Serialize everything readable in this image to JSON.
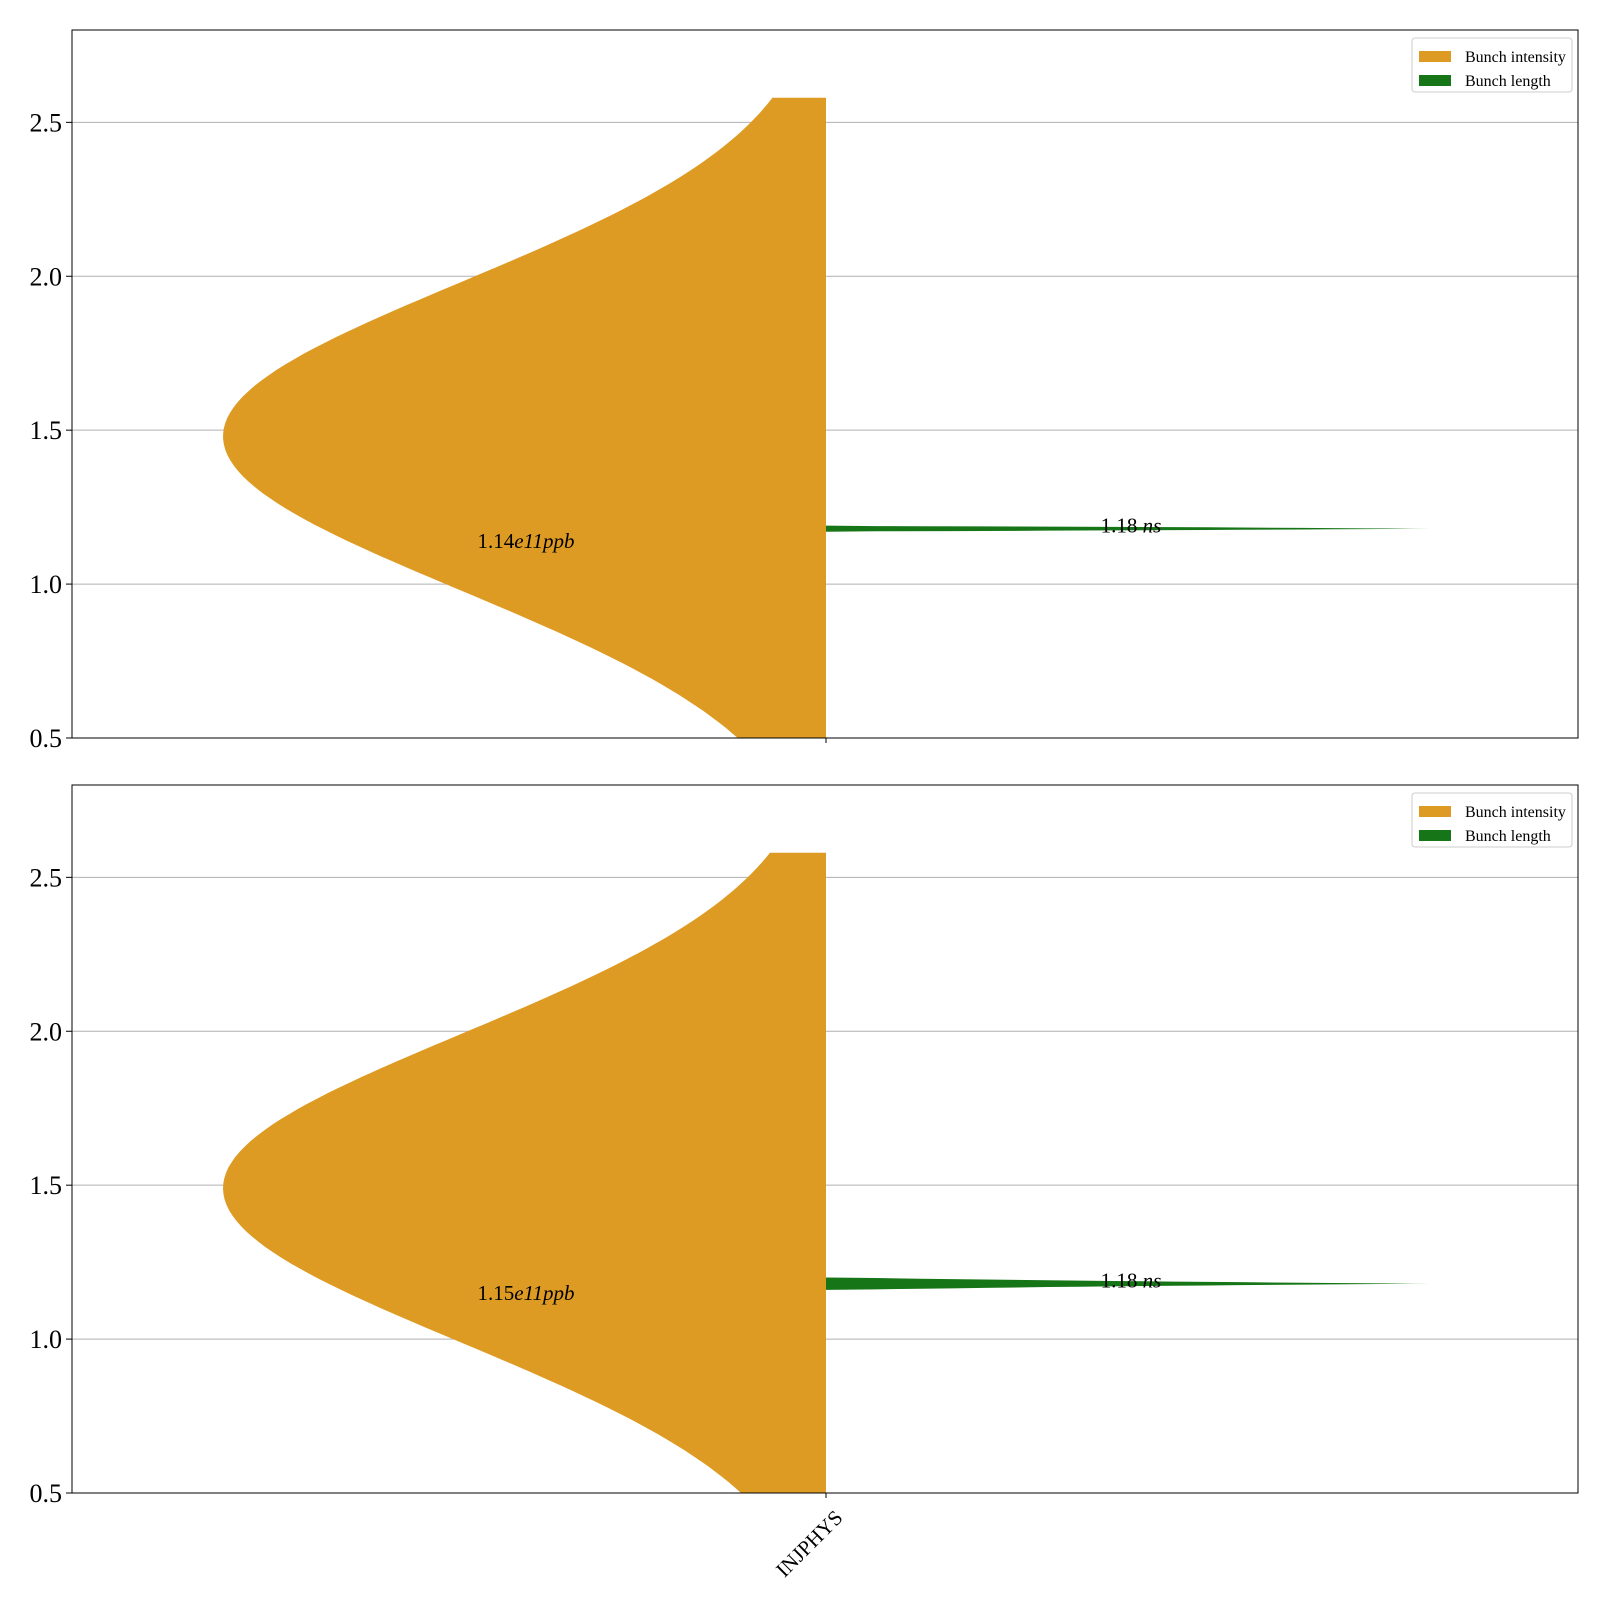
{
  "chart_data": [
    {
      "type": "violin",
      "title": "",
      "xlabel": "",
      "ylabel": "",
      "ylim": [
        0.5,
        2.8
      ],
      "yticks": [
        "0.5",
        "1.0",
        "1.5",
        "2.0",
        "2.5"
      ],
      "grid": "horizontal",
      "legend_position": "upper right",
      "categories": [
        "INJPHYS"
      ],
      "series": [
        {
          "name": "Bunch intensity",
          "color": "#de9b23",
          "side": "left",
          "distribution": {
            "center": 1.48,
            "sd": 0.5,
            "min": 0.5,
            "max": 2.58
          },
          "annotation": {
            "value": "1.14",
            "exp": "e11",
            "unit": "ppb",
            "y": 1.14
          }
        },
        {
          "name": "Bunch length",
          "color": "#167516",
          "side": "right",
          "distribution": {
            "min": 1.17,
            "max": 1.19,
            "center": 1.18
          },
          "annotation": {
            "value": "1.18",
            "unit": "ns",
            "y": 1.18
          }
        }
      ]
    },
    {
      "type": "violin",
      "title": "",
      "xlabel": "",
      "ylabel": "",
      "ylim": [
        0.5,
        2.8
      ],
      "yticks": [
        "0.5",
        "1.0",
        "1.5",
        "2.0",
        "2.5"
      ],
      "grid": "horizontal",
      "legend_position": "upper right",
      "categories": [
        "INJPHYS"
      ],
      "series": [
        {
          "name": "Bunch intensity",
          "color": "#de9b23",
          "side": "left",
          "distribution": {
            "center": 1.49,
            "sd": 0.5,
            "min": 0.5,
            "max": 2.58
          },
          "annotation": {
            "value": "1.15",
            "exp": "e11",
            "unit": "ppb",
            "y": 1.15
          }
        },
        {
          "name": "Bunch length",
          "color": "#167516",
          "side": "right",
          "distribution": {
            "min": 1.16,
            "max": 1.2,
            "center": 1.18
          },
          "annotation": {
            "value": "1.18",
            "unit": "ns",
            "y": 1.18
          }
        }
      ]
    }
  ]
}
